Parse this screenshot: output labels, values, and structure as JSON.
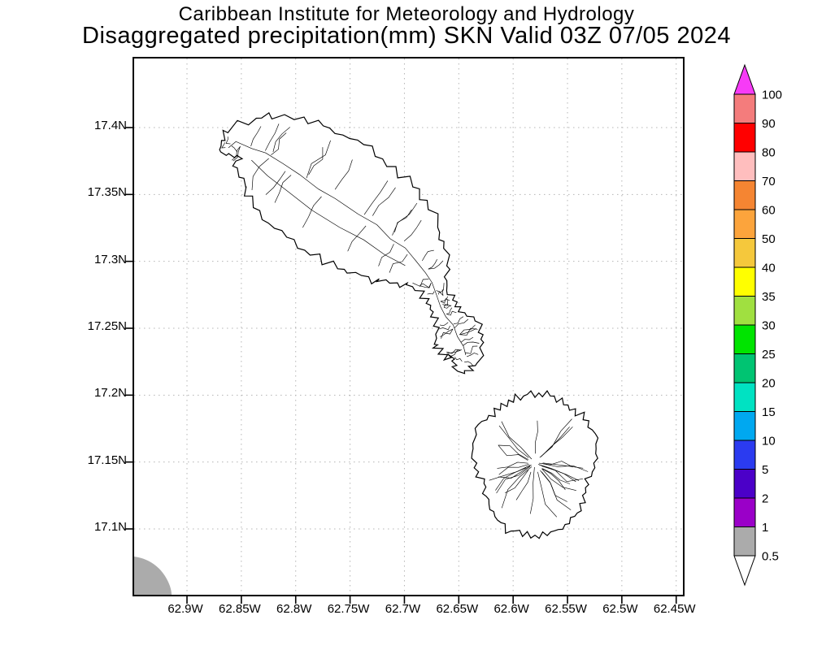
{
  "title": {
    "line1": "Caribbean Institute for Meteorology and Hydrology",
    "line2": "Disaggregated precipitation(mm) SKN Valid 03Z 07/05 2024"
  },
  "map": {
    "lat_labels": [
      "17.4N",
      "17.35N",
      "17.3N",
      "17.25N",
      "17.2N",
      "17.15N",
      "17.1N"
    ],
    "lon_labels": [
      "62.9W",
      "62.85W",
      "62.8W",
      "62.75W",
      "62.7W",
      "62.65W",
      "62.6W",
      "62.55W",
      "62.5W",
      "62.45W"
    ],
    "shaded_region": {
      "value_range": "0.5-1",
      "color": "#ABABAB"
    }
  },
  "colorbar": {
    "tick_labels": [
      "100",
      "90",
      "80",
      "70",
      "60",
      "50",
      "40",
      "35",
      "30",
      "25",
      "20",
      "15",
      "10",
      "5",
      "2",
      "1",
      "0.5"
    ],
    "segment_colors_top_to_bottom": [
      "#F47C7C",
      "#FF0000",
      "#FFBEBE",
      "#F58532",
      "#FCA43C",
      "#F5C83C",
      "#FFFF00",
      "#A0E040",
      "#00E400",
      "#00C472",
      "#00E2C2",
      "#00A8F0",
      "#2B3BF0",
      "#4B00C8",
      "#9A00C8",
      "#ABABAB"
    ],
    "above_max_color": "#F73BF7",
    "below_min_color": "#FFFFFF"
  }
}
